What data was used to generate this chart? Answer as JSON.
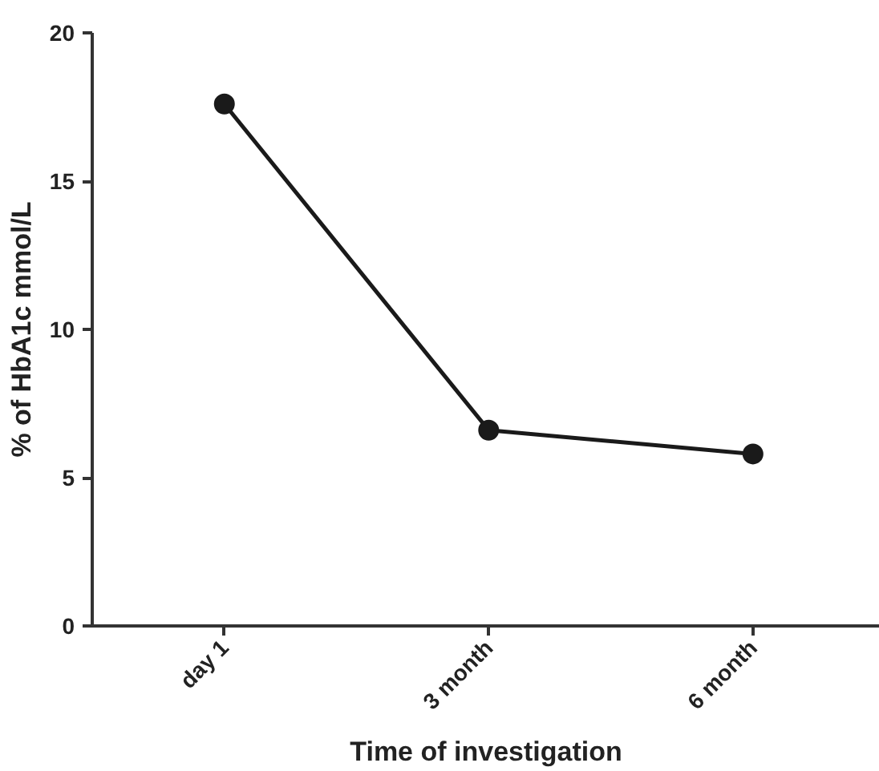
{
  "chart_data": {
    "type": "line",
    "xlabel": "Time of investigation",
    "ylabel": "% of HbA1c mmol/L",
    "categories": [
      "day 1",
      "3 month",
      "6 month"
    ],
    "series": [
      {
        "color": "#1a1a1a",
        "values": [
          17.6,
          6.6,
          5.8
        ]
      }
    ],
    "ylim": [
      0,
      20
    ],
    "yticks": [
      0,
      5,
      10,
      15,
      20
    ],
    "marker": "circle",
    "line_style": "solid"
  }
}
